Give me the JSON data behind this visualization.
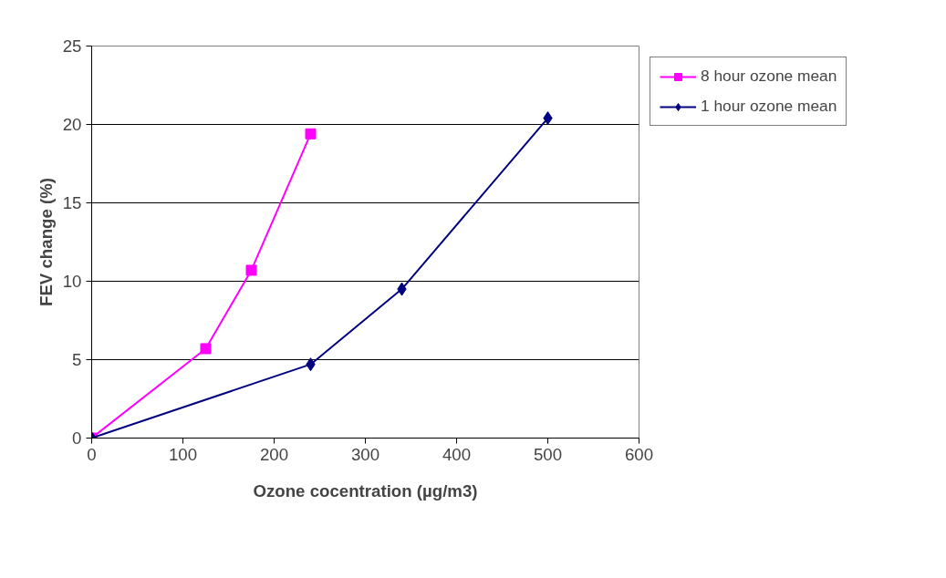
{
  "chart_data": {
    "type": "line",
    "xlabel": "Ozone cocentration (µg/m3)",
    "ylabel": "FEV change (%)",
    "series": [
      {
        "name": "8 hour ozone mean",
        "color": "#ff00ff",
        "marker": "square",
        "x": [
          0,
          125,
          175,
          240
        ],
        "values": [
          0,
          5.7,
          10.7,
          19.4
        ]
      },
      {
        "name": "1 hour ozone mean",
        "color": "#000080",
        "marker": "diamond",
        "x": [
          0,
          240,
          340,
          500
        ],
        "values": [
          0,
          4.7,
          9.5,
          20.4
        ]
      }
    ],
    "xlim": [
      0,
      600
    ],
    "xticks": [
      0,
      100,
      200,
      300,
      400,
      500,
      600
    ],
    "ylim": [
      0,
      25
    ],
    "yticks": [
      0,
      5,
      10,
      15,
      20,
      25
    ],
    "grid": "y",
    "legend": "right",
    "line_style": "solid"
  }
}
